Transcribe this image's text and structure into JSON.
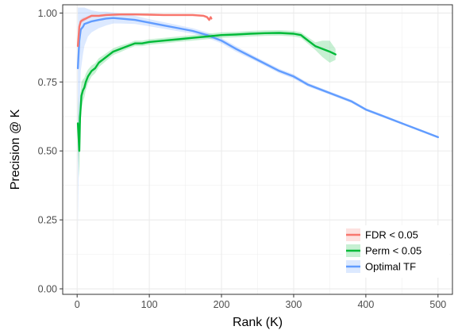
{
  "chart_data": {
    "type": "line",
    "title": "",
    "xlabel": "Rank (K)",
    "ylabel": "Precision @ K",
    "xlim": [
      -20,
      520
    ],
    "ylim": [
      -0.02,
      1.03
    ],
    "x_ticks": [
      0,
      100,
      200,
      300,
      400,
      500
    ],
    "y_ticks": [
      0.0,
      0.25,
      0.5,
      0.75,
      1.0
    ],
    "x_tick_labels": [
      "0",
      "100",
      "200",
      "300",
      "400",
      "500"
    ],
    "y_tick_labels": [
      "0.00",
      "0.25",
      "0.50",
      "0.75",
      "1.00"
    ],
    "grid": true,
    "legend_position": "bottom-right",
    "series": [
      {
        "name": "FDR < 0.05",
        "color": "#F8766D",
        "x": [
          1,
          3,
          5,
          8,
          12,
          16,
          20,
          30,
          40,
          60,
          80,
          100,
          120,
          140,
          160,
          175,
          180,
          183,
          185,
          186
        ],
        "y": [
          0.88,
          0.95,
          0.97,
          0.975,
          0.98,
          0.985,
          0.99,
          0.99,
          0.993,
          0.995,
          0.995,
          0.994,
          0.993,
          0.993,
          0.993,
          0.99,
          0.985,
          0.975,
          0.985,
          0.98
        ],
        "band": [
          0.01,
          0.01,
          0.008,
          0.008,
          0.006,
          0.005,
          0.005,
          0.004,
          0.004,
          0.004,
          0.004,
          0.004,
          0.004,
          0.004,
          0.004,
          0.004,
          0.005,
          0.005,
          0.005,
          0.005
        ]
      },
      {
        "name": "Perm < 0.05",
        "color": "#00BA38",
        "x": [
          1,
          2,
          3,
          4,
          5,
          6,
          8,
          10,
          12,
          15,
          20,
          25,
          30,
          40,
          50,
          60,
          70,
          80,
          90,
          100,
          120,
          140,
          160,
          180,
          200,
          220,
          240,
          260,
          280,
          300,
          310,
          320,
          330,
          340,
          350,
          358
        ],
        "y": [
          0.6,
          0.55,
          0.5,
          0.62,
          0.66,
          0.7,
          0.72,
          0.73,
          0.75,
          0.77,
          0.79,
          0.8,
          0.82,
          0.84,
          0.86,
          0.87,
          0.88,
          0.89,
          0.89,
          0.895,
          0.9,
          0.905,
          0.91,
          0.915,
          0.92,
          0.922,
          0.925,
          0.927,
          0.928,
          0.925,
          0.92,
          0.9,
          0.88,
          0.87,
          0.86,
          0.85
        ],
        "band": [
          0.1,
          0.1,
          0.1,
          0.08,
          0.06,
          0.05,
          0.04,
          0.035,
          0.03,
          0.025,
          0.02,
          0.018,
          0.016,
          0.014,
          0.012,
          0.012,
          0.01,
          0.01,
          0.01,
          0.01,
          0.01,
          0.01,
          0.01,
          0.01,
          0.01,
          0.01,
          0.01,
          0.01,
          0.01,
          0.01,
          0.01,
          0.012,
          0.014,
          0.03,
          0.04,
          0.02
        ]
      },
      {
        "name": "Optimal TF",
        "color": "#619CFF",
        "x": [
          1,
          3,
          5,
          8,
          10,
          15,
          20,
          30,
          40,
          50,
          60,
          80,
          100,
          120,
          140,
          160,
          180,
          200,
          220,
          250,
          280,
          300,
          320,
          350,
          380,
          400,
          420,
          450,
          480,
          500
        ],
        "y": [
          0.8,
          0.9,
          0.94,
          0.95,
          0.96,
          0.965,
          0.97,
          0.975,
          0.98,
          0.982,
          0.98,
          0.975,
          0.965,
          0.955,
          0.945,
          0.935,
          0.92,
          0.9,
          0.87,
          0.83,
          0.79,
          0.77,
          0.74,
          0.71,
          0.68,
          0.65,
          0.63,
          0.6,
          0.57,
          0.55
        ],
        "band": [
          0.6,
          0.3,
          0.15,
          0.1,
          0.08,
          0.05,
          0.04,
          0.03,
          0.025,
          0.02,
          0.018,
          0.015,
          0.013,
          0.012,
          0.011,
          0.01,
          0.01,
          0.01,
          0.01,
          0.008,
          0.008,
          0.008,
          0.007,
          0.006,
          0.006,
          0.005,
          0.005,
          0.004,
          0.004,
          0.004
        ]
      }
    ]
  }
}
